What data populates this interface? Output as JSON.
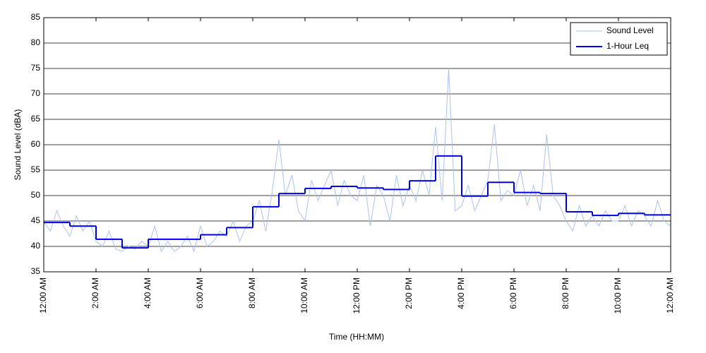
{
  "chart_data": {
    "type": "line",
    "x_label": "Time (HH:MM)",
    "y_label": "Sound Level (dBA)",
    "xlim": [
      0,
      24
    ],
    "xticks": [
      {
        "value": 0,
        "label": "12:00 AM"
      },
      {
        "value": 2,
        "label": "2:00 AM"
      },
      {
        "value": 4,
        "label": "4:00 AM"
      },
      {
        "value": 6,
        "label": "6:00 AM"
      },
      {
        "value": 8,
        "label": "8:00 AM"
      },
      {
        "value": 10,
        "label": "10:00 AM"
      },
      {
        "value": 12,
        "label": "12:00 PM"
      },
      {
        "value": 14,
        "label": "2:00 PM"
      },
      {
        "value": 16,
        "label": "4:00 PM"
      },
      {
        "value": 18,
        "label": "6:00 PM"
      },
      {
        "value": 20,
        "label": "8:00 PM"
      },
      {
        "value": 22,
        "label": "10:00 PM"
      },
      {
        "value": 24,
        "label": "12:00 AM"
      }
    ],
    "ylim": [
      35,
      85
    ],
    "yticks": [
      35,
      40,
      45,
      50,
      55,
      60,
      65,
      70,
      75,
      80,
      85
    ],
    "grid": true,
    "legend": "top-right",
    "series": [
      {
        "name": "Sound Level",
        "color": "#a9c3f2",
        "style": "line",
        "x": [
          0,
          0.25,
          0.5,
          0.75,
          1,
          1.25,
          1.5,
          1.75,
          2,
          2.25,
          2.5,
          2.75,
          3,
          3.25,
          3.5,
          3.75,
          4,
          4.25,
          4.5,
          4.75,
          5,
          5.25,
          5.5,
          5.75,
          6,
          6.25,
          6.5,
          6.75,
          7,
          7.25,
          7.5,
          7.75,
          8,
          8.25,
          8.5,
          8.75,
          9,
          9.25,
          9.5,
          9.75,
          10,
          10.25,
          10.5,
          10.75,
          11,
          11.25,
          11.5,
          11.75,
          12,
          12.25,
          12.5,
          12.75,
          13,
          13.25,
          13.5,
          13.75,
          14,
          14.25,
          14.5,
          14.75,
          15,
          15.25,
          15.5,
          15.75,
          16,
          16.25,
          16.5,
          16.75,
          17,
          17.25,
          17.5,
          17.75,
          18,
          18.25,
          18.5,
          18.75,
          19,
          19.25,
          19.5,
          19.75,
          20,
          20.25,
          20.5,
          20.75,
          21,
          21.25,
          21.5,
          21.75,
          22,
          22.25,
          22.5,
          22.75,
          23,
          23.25,
          23.5,
          23.75,
          24
        ],
        "values": [
          45,
          43,
          47,
          44,
          42,
          46,
          43,
          45,
          41,
          40,
          43,
          39.5,
          39,
          40,
          39.5,
          41,
          40,
          44,
          39,
          41,
          39,
          40,
          42,
          39,
          44,
          40,
          41,
          43,
          42,
          45,
          41,
          44,
          45,
          49,
          43,
          51,
          61,
          50,
          54,
          47,
          45,
          53,
          49,
          52,
          55,
          48,
          53,
          50,
          49,
          54,
          44,
          52,
          50,
          45,
          54,
          48,
          52,
          49,
          55,
          50,
          63.5,
          49,
          75,
          47,
          48,
          52,
          47,
          50,
          53,
          64,
          49,
          51,
          50,
          55,
          48,
          52,
          47,
          62,
          50,
          48,
          45,
          43,
          48,
          44,
          46,
          44,
          47,
          45,
          45,
          48,
          44,
          47,
          46,
          44,
          49,
          45,
          44
        ]
      },
      {
        "name": "1-Hour Leq",
        "color": "#0000e6",
        "style": "step",
        "x": [
          0,
          1,
          2,
          3,
          4,
          5,
          6,
          7,
          8,
          9,
          10,
          11,
          12,
          13,
          14,
          15,
          16,
          17,
          18,
          19,
          20,
          21,
          22,
          23
        ],
        "values": [
          44.7,
          44.0,
          41.4,
          39.7,
          41.4,
          41.4,
          42.3,
          43.7,
          47.8,
          50.4,
          51.4,
          51.8,
          51.5,
          51.2,
          52.9,
          57.8,
          49.9,
          52.6,
          50.6,
          50.4,
          46.8,
          46.1,
          46.5,
          46.2
        ]
      }
    ]
  }
}
